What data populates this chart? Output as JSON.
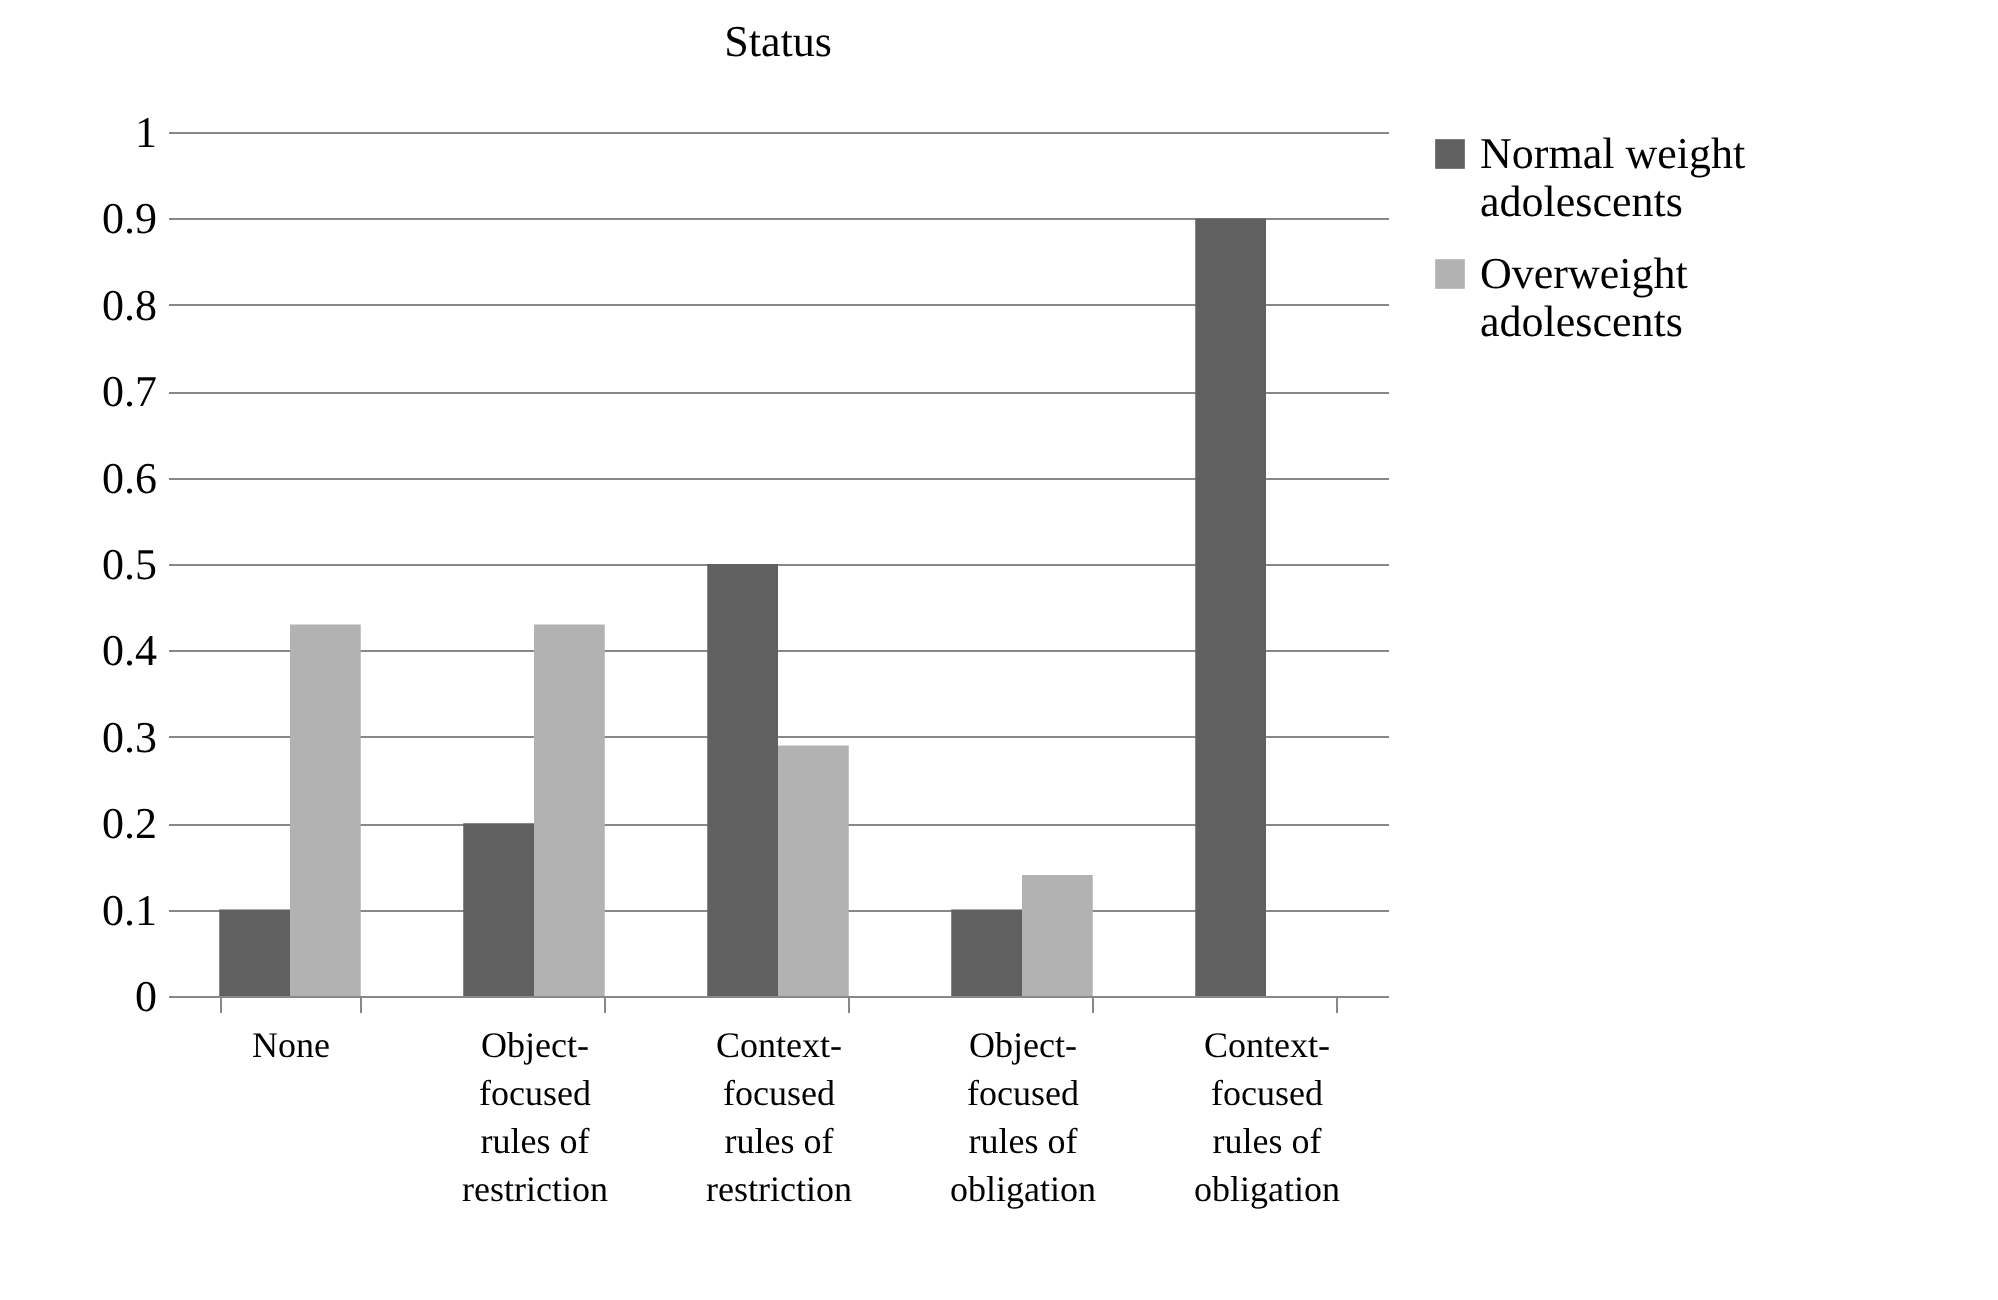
{
  "chart_data": {
    "type": "bar",
    "title": "Status",
    "categories": [
      "None",
      "Object-focused rules of restriction",
      "Context-focused rules of restriction",
      "Object-focused rules of obligation",
      "Context-focused rules of obligation"
    ],
    "series": [
      {
        "name": "Normal weight adolescents",
        "color": "#606060",
        "values": [
          0.1,
          0.2,
          0.5,
          0.1,
          0.9
        ]
      },
      {
        "name": "Overweight adolescents",
        "color": "#b2b2b2",
        "values": [
          0.43,
          0.43,
          0.29,
          0.14,
          0
        ]
      }
    ],
    "ylim": [
      0,
      1
    ],
    "yticks": [
      0,
      0.1,
      0.2,
      0.3,
      0.4,
      0.5,
      0.6,
      0.7,
      0.8,
      0.9,
      1
    ],
    "grid": "y",
    "legend": "right"
  }
}
